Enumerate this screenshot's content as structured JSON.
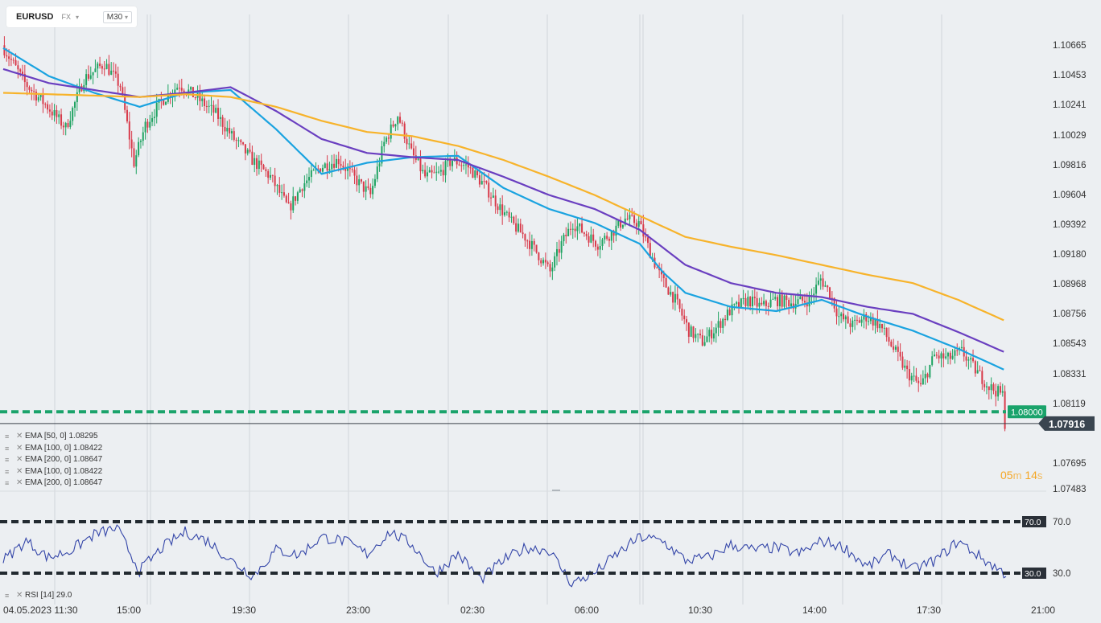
{
  "header": {
    "symbol": "EURUSD",
    "market": "FX",
    "caret": "▾",
    "timeframe": "M30",
    "timeframe_caret": "▾"
  },
  "legend_indicators": [
    {
      "icon": "≡",
      "close": "✕",
      "text": "EMA  [50,  0]  1.08295"
    },
    {
      "icon": "≡",
      "close": "✕",
      "text": "EMA  [100,  0]  1.08422"
    },
    {
      "icon": "≡",
      "close": "✕",
      "text": "EMA  [200,  0]  1.08647"
    },
    {
      "icon": "≡",
      "close": "✕",
      "text": "EMA  [100,  0]  1.08422"
    },
    {
      "icon": "≡",
      "close": "✕",
      "text": "EMA  [200,  0]  1.08647"
    }
  ],
  "rsi_legend": {
    "icon": "≡",
    "close": "✕",
    "text": "RSI  [14]  29.0"
  },
  "countdown": {
    "minutes": "05",
    "m": "m",
    "seconds": "14",
    "s": "s"
  },
  "colors": {
    "background": "#eceff2",
    "candle_up": "#1fa362",
    "candle_down": "#d83a4a",
    "ema50": "#1aa3e0",
    "ema100": "#6a3fc0",
    "ema200": "#f7b32b",
    "level_line": "#1aa36b",
    "rsi_line": "#3345a8",
    "rsi_level": "#222a30"
  },
  "chart_data": {
    "type": "candlestick",
    "symbol": "EURUSD",
    "timeframe": "M30",
    "price_axis": {
      "ticks": [
        "1.10665",
        "1.10453",
        "1.10241",
        "1.10029",
        "1.09816",
        "1.09604",
        "1.09392",
        "1.09180",
        "1.08968",
        "1.08756",
        "1.08543",
        "1.08331",
        "1.08119",
        "1.07695",
        "1.07483"
      ],
      "range": [
        1.0745,
        1.1084
      ]
    },
    "time_axis": [
      "04.05.2023  11:30",
      "15:00",
      "19:30",
      "23:00",
      "02:30",
      "06:00",
      "10:30",
      "14:00",
      "17:30",
      "21:00"
    ],
    "last_price": 1.07916,
    "last_price_label": "1.07916",
    "horizontal_level": 1.08,
    "horizontal_level_label": "1.08000",
    "price_path": [
      [
        0,
        1.1062
      ],
      [
        10,
        1.1035
      ],
      [
        20,
        1.1018
      ],
      [
        28,
        1.1003
      ],
      [
        36,
        1.1038
      ],
      [
        45,
        1.1049
      ],
      [
        52,
        1.1033
      ],
      [
        58,
        1.0978
      ],
      [
        63,
        1.1005
      ],
      [
        70,
        1.1022
      ],
      [
        78,
        1.1034
      ],
      [
        86,
        1.1024
      ],
      [
        94,
        1.1013
      ],
      [
        102,
        1.0995
      ],
      [
        110,
        1.098
      ],
      [
        118,
        1.0968
      ],
      [
        126,
        1.0945
      ],
      [
        132,
        1.0962
      ],
      [
        140,
        1.0975
      ],
      [
        148,
        1.098
      ],
      [
        156,
        1.0965
      ],
      [
        162,
        1.0955
      ],
      [
        168,
        1.0992
      ],
      [
        174,
        1.1012
      ],
      [
        180,
        1.0985
      ],
      [
        186,
        1.0968
      ],
      [
        192,
        1.097
      ],
      [
        198,
        1.098
      ],
      [
        205,
        1.0975
      ],
      [
        212,
        1.0962
      ],
      [
        218,
        1.0948
      ],
      [
        224,
        1.0935
      ],
      [
        230,
        1.0925
      ],
      [
        236,
        1.0912
      ],
      [
        241,
        1.09
      ],
      [
        246,
        1.092
      ],
      [
        251,
        1.0935
      ],
      [
        256,
        1.0928
      ],
      [
        262,
        1.092
      ],
      [
        268,
        1.0928
      ],
      [
        274,
        1.0938
      ],
      [
        280,
        1.0935
      ],
      [
        286,
        1.091
      ],
      [
        290,
        1.0895
      ],
      [
        296,
        1.088
      ],
      [
        302,
        1.0858
      ],
      [
        308,
        1.085
      ],
      [
        314,
        1.086
      ],
      [
        320,
        1.0872
      ],
      [
        328,
        1.088
      ],
      [
        334,
        1.0875
      ],
      [
        340,
        1.088
      ],
      [
        348,
        1.0878
      ],
      [
        355,
        1.088
      ],
      [
        360,
        1.0895
      ],
      [
        364,
        1.0885
      ],
      [
        368,
        1.0868
      ],
      [
        374,
        1.0862
      ],
      [
        380,
        1.0868
      ],
      [
        386,
        1.0862
      ],
      [
        392,
        1.0845
      ],
      [
        398,
        1.0828
      ],
      [
        404,
        1.0818
      ],
      [
        410,
        1.084
      ],
      [
        416,
        1.0838
      ],
      [
        422,
        1.0843
      ],
      [
        428,
        1.083
      ],
      [
        434,
        1.0818
      ],
      [
        440,
        1.0812
      ],
      [
        441,
        1.0792
      ]
    ],
    "ema_series": [
      {
        "name": "EMA [50, 0]",
        "last": 1.08295,
        "color": "#1aa3e0",
        "points": [
          [
            0,
            1.106
          ],
          [
            20,
            1.104
          ],
          [
            40,
            1.1028
          ],
          [
            60,
            1.1018
          ],
          [
            80,
            1.1028
          ],
          [
            100,
            1.103
          ],
          [
            120,
            1.1002
          ],
          [
            140,
            1.097
          ],
          [
            160,
            1.0978
          ],
          [
            180,
            1.0982
          ],
          [
            200,
            1.0983
          ],
          [
            220,
            1.096
          ],
          [
            240,
            1.0945
          ],
          [
            260,
            1.0935
          ],
          [
            280,
            1.092
          ],
          [
            290,
            1.09
          ],
          [
            300,
            1.0885
          ],
          [
            320,
            1.0875
          ],
          [
            340,
            1.0872
          ],
          [
            360,
            1.088
          ],
          [
            380,
            1.0868
          ],
          [
            400,
            1.0858
          ],
          [
            420,
            1.0845
          ],
          [
            441,
            1.08295
          ]
        ]
      },
      {
        "name": "EMA [100, 0]",
        "last": 1.08422,
        "color": "#6a3fc0",
        "points": [
          [
            0,
            1.1045
          ],
          [
            20,
            1.1035
          ],
          [
            40,
            1.103
          ],
          [
            60,
            1.1025
          ],
          [
            80,
            1.1028
          ],
          [
            100,
            1.1032
          ],
          [
            120,
            1.1015
          ],
          [
            140,
            1.0995
          ],
          [
            160,
            1.0985
          ],
          [
            180,
            1.0982
          ],
          [
            200,
            1.098
          ],
          [
            220,
            1.0968
          ],
          [
            240,
            1.0955
          ],
          [
            260,
            1.0945
          ],
          [
            280,
            1.093
          ],
          [
            300,
            1.0905
          ],
          [
            320,
            1.0892
          ],
          [
            340,
            1.0885
          ],
          [
            360,
            1.0882
          ],
          [
            380,
            1.0875
          ],
          [
            400,
            1.087
          ],
          [
            420,
            1.0857
          ],
          [
            441,
            1.08422
          ]
        ]
      },
      {
        "name": "EMA [200, 0]",
        "last": 1.08647,
        "color": "#f7b32b",
        "points": [
          [
            0,
            1.1028
          ],
          [
            20,
            1.1027
          ],
          [
            40,
            1.1026
          ],
          [
            60,
            1.1025
          ],
          [
            80,
            1.1027
          ],
          [
            100,
            1.1025
          ],
          [
            120,
            1.1018
          ],
          [
            140,
            1.1008
          ],
          [
            160,
            1.1
          ],
          [
            180,
            1.0997
          ],
          [
            200,
            1.099
          ],
          [
            220,
            1.098
          ],
          [
            240,
            1.0968
          ],
          [
            260,
            1.0955
          ],
          [
            280,
            1.094
          ],
          [
            300,
            1.0925
          ],
          [
            320,
            1.0918
          ],
          [
            340,
            1.0912
          ],
          [
            360,
            1.0905
          ],
          [
            380,
            1.0898
          ],
          [
            400,
            1.0892
          ],
          [
            420,
            1.088
          ],
          [
            441,
            1.08647
          ]
        ]
      }
    ],
    "rsi": {
      "name": "RSI [14]",
      "last": 29.0,
      "levels": [
        70.0,
        30.0
      ],
      "level_labels": [
        "70.0",
        "30.0"
      ],
      "axis_labels": [
        "70.0",
        "30.0"
      ],
      "path": [
        [
          0,
          40
        ],
        [
          10,
          55
        ],
        [
          20,
          42
        ],
        [
          30,
          48
        ],
        [
          40,
          60
        ],
        [
          50,
          65
        ],
        [
          60,
          32
        ],
        [
          70,
          50
        ],
        [
          80,
          62
        ],
        [
          90,
          55
        ],
        [
          100,
          40
        ],
        [
          110,
          28
        ],
        [
          120,
          48
        ],
        [
          130,
          44
        ],
        [
          140,
          58
        ],
        [
          150,
          55
        ],
        [
          160,
          45
        ],
        [
          170,
          62
        ],
        [
          180,
          52
        ],
        [
          190,
          30
        ],
        [
          200,
          45
        ],
        [
          210,
          25
        ],
        [
          220,
          40
        ],
        [
          230,
          50
        ],
        [
          240,
          48
        ],
        [
          250,
          22
        ],
        [
          260,
          30
        ],
        [
          270,
          45
        ],
        [
          280,
          58
        ],
        [
          290,
          55
        ],
        [
          300,
          40
        ],
        [
          310,
          42
        ],
        [
          320,
          52
        ],
        [
          330,
          48
        ],
        [
          340,
          50
        ],
        [
          350,
          45
        ],
        [
          360,
          55
        ],
        [
          370,
          50
        ],
        [
          380,
          35
        ],
        [
          390,
          45
        ],
        [
          400,
          33
        ],
        [
          410,
          40
        ],
        [
          420,
          55
        ],
        [
          430,
          42
        ],
        [
          441,
          29
        ]
      ]
    }
  }
}
